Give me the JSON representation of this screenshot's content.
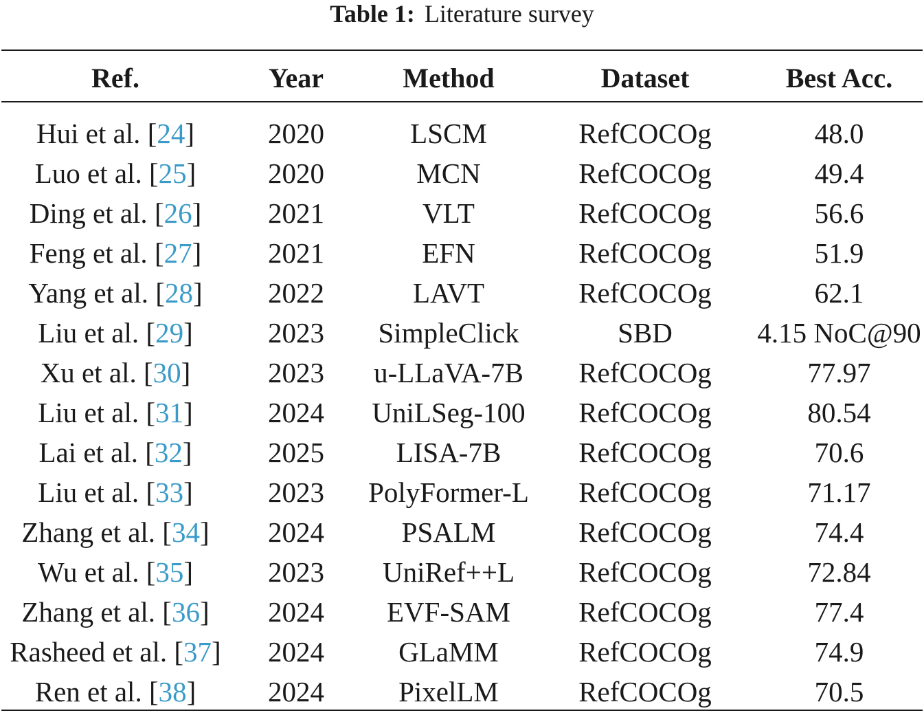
{
  "caption": {
    "label": "Table 1:",
    "text": "Literature survey"
  },
  "table": {
    "headers": {
      "ref": "Ref.",
      "year": "Year",
      "method": "Method",
      "dataset": "Dataset",
      "best_acc": "Best Acc."
    },
    "rows": [
      {
        "author": "Hui et al.",
        "cite": "24",
        "year": "2020",
        "method": "LSCM",
        "dataset": "RefCOCOg",
        "best_acc": "48.0"
      },
      {
        "author": "Luo et al.",
        "cite": "25",
        "year": "2020",
        "method": "MCN",
        "dataset": "RefCOCOg",
        "best_acc": "49.4"
      },
      {
        "author": "Ding et al.",
        "cite": "26",
        "year": "2021",
        "method": "VLT",
        "dataset": "RefCOCOg",
        "best_acc": "56.6"
      },
      {
        "author": "Feng et al.",
        "cite": "27",
        "year": "2021",
        "method": "EFN",
        "dataset": "RefCOCOg",
        "best_acc": "51.9"
      },
      {
        "author": "Yang et al.",
        "cite": "28",
        "year": "2022",
        "method": "LAVT",
        "dataset": "RefCOCOg",
        "best_acc": "62.1"
      },
      {
        "author": "Liu et al.",
        "cite": "29",
        "year": "2023",
        "method": "SimpleClick",
        "dataset": "SBD",
        "best_acc": "4.15 NoC@90"
      },
      {
        "author": "Xu et al.",
        "cite": "30",
        "year": "2023",
        "method": "u-LLaVA-7B",
        "dataset": "RefCOCOg",
        "best_acc": "77.97"
      },
      {
        "author": "Liu et al.",
        "cite": "31",
        "year": "2024",
        "method": "UniLSeg-100",
        "dataset": "RefCOCOg",
        "best_acc": "80.54"
      },
      {
        "author": "Lai et al.",
        "cite": "32",
        "year": "2025",
        "method": "LISA-7B",
        "dataset": "RefCOCOg",
        "best_acc": "70.6"
      },
      {
        "author": "Liu et al.",
        "cite": "33",
        "year": "2023",
        "method": "PolyFormer-L",
        "dataset": "RefCOCOg",
        "best_acc": "71.17"
      },
      {
        "author": "Zhang et al.",
        "cite": "34",
        "year": "2024",
        "method": "PSALM",
        "dataset": "RefCOCOg",
        "best_acc": "74.4"
      },
      {
        "author": "Wu et al.",
        "cite": "35",
        "year": "2023",
        "method": "UniRef++L",
        "dataset": "RefCOCOg",
        "best_acc": "72.84"
      },
      {
        "author": "Zhang et al.",
        "cite": "36",
        "year": "2024",
        "method": "EVF-SAM",
        "dataset": "RefCOCOg",
        "best_acc": "77.4"
      },
      {
        "author": "Rasheed et al.",
        "cite": "37",
        "year": "2024",
        "method": "GLaMM",
        "dataset": "RefCOCOg",
        "best_acc": "74.9"
      },
      {
        "author": "Ren et al.",
        "cite": "38",
        "year": "2024",
        "method": "PixelLM",
        "dataset": "RefCOCOg",
        "best_acc": "70.5"
      }
    ]
  }
}
